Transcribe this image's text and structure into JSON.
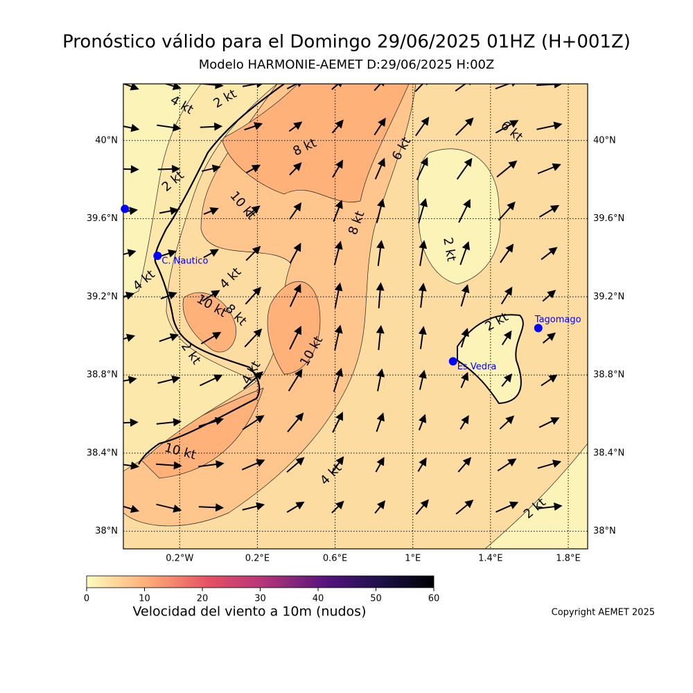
{
  "header": {
    "title": "Pronóstico válido para el Domingo 29/06/2025 01HZ (H+001Z)",
    "subtitle": "Modelo HARMONIE-AEMET D:29/06/2025 H:00Z"
  },
  "map": {
    "xlim": [
      -0.49,
      1.9
    ],
    "ylim": [
      37.91,
      40.29
    ],
    "xticks": [
      {
        "value": -0.2,
        "label": "0.2°W"
      },
      {
        "value": 0.2,
        "label": "0.2°E"
      },
      {
        "value": 0.6,
        "label": "0.6°E"
      },
      {
        "value": 1.0,
        "label": "1°E"
      },
      {
        "value": 1.4,
        "label": "1.4°E"
      },
      {
        "value": 1.8,
        "label": "1.8°E"
      }
    ],
    "yticks": [
      {
        "value": 38.0,
        "label": "38°N"
      },
      {
        "value": 38.4,
        "label": "38.4°N"
      },
      {
        "value": 38.8,
        "label": "38.8°N"
      },
      {
        "value": 39.2,
        "label": "39.2°N"
      },
      {
        "value": 39.6,
        "label": "39.6°N"
      },
      {
        "value": 40.0,
        "label": "40°N"
      }
    ],
    "stations": [
      {
        "lon": -0.482,
        "lat": 39.65
      },
      {
        "name": "C. Nautico",
        "lon": -0.314,
        "lat": 39.41
      },
      {
        "name": "Tagomago",
        "lon": 1.646,
        "lat": 39.04
      },
      {
        "name": "Es Vedra",
        "lon": 1.207,
        "lat": 38.87
      }
    ],
    "contour_labels": [
      "4 kt",
      "2 kt",
      "8 kt",
      "6 kt",
      "6 kt",
      "2 kt",
      "10 kt",
      "8 kt",
      "2 kt",
      "4 kt",
      "4 kt",
      "10 kt",
      "8 kt",
      "2 kt",
      "10 kt",
      "2 kt",
      "4 kt",
      "10 kt",
      "4 kt",
      "2 kt"
    ]
  },
  "colorbar": {
    "label": "Velocidad del viento a 10m (nudos)",
    "lim": [
      0,
      60
    ],
    "ticks": [
      0,
      10,
      20,
      30,
      40,
      50,
      60
    ]
  },
  "footer": {
    "copyright": "Copyright AEMET 2025"
  }
}
